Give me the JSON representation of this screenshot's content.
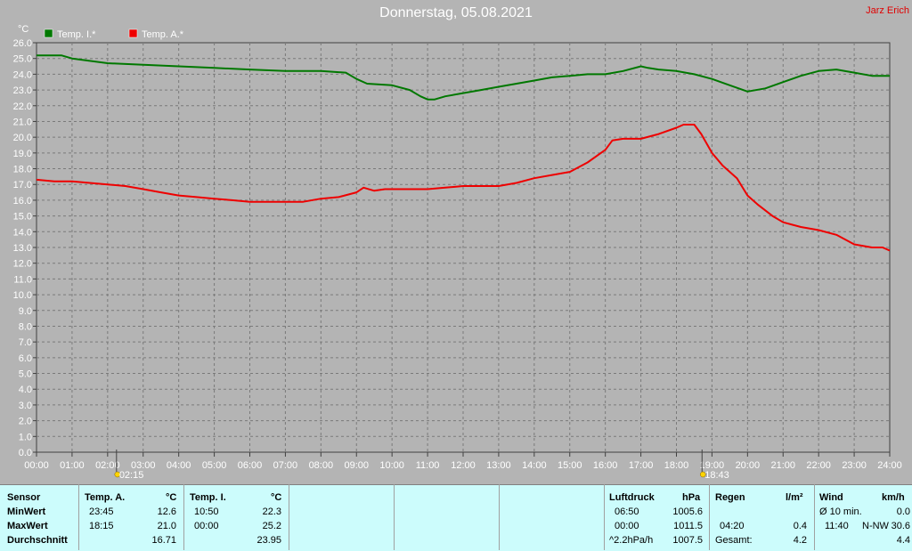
{
  "title": "Donnerstag, 05.08.2021",
  "author": "Jarz Erich",
  "chart_data": {
    "type": "line",
    "title": "Donnerstag, 05.08.2021",
    "yunit": "°C",
    "ylim": [
      0,
      26
    ],
    "ystep": 1,
    "xlim": [
      0,
      24
    ],
    "grid": true,
    "legend_position": "top-left",
    "x_ticks": [
      "00:00",
      "01:00",
      "02:00",
      "03:00",
      "04:00",
      "05:00",
      "06:00",
      "07:00",
      "08:00",
      "09:00",
      "10:00",
      "11:00",
      "12:00",
      "13:00",
      "14:00",
      "15:00",
      "16:00",
      "17:00",
      "18:00",
      "19:00",
      "20:00",
      "21:00",
      "22:00",
      "23:00",
      "24:00"
    ],
    "y_ticks": [
      "0.0",
      "1.0",
      "2.0",
      "3.0",
      "4.0",
      "5.0",
      "6.0",
      "7.0",
      "8.0",
      "9.0",
      "10.0",
      "11.0",
      "12.0",
      "13.0",
      "14.0",
      "15.0",
      "16.0",
      "17.0",
      "18.0",
      "19.0",
      "20.0",
      "21.0",
      "22.0",
      "23.0",
      "24.0",
      "25.0",
      "26.0"
    ],
    "sunrise": {
      "x": 2.25,
      "label": "02:15"
    },
    "sunset": {
      "x": 18.72,
      "label": "18:43"
    },
    "series": [
      {
        "name": "Temp. I.*",
        "color": "#007800",
        "x": [
          0,
          0.7,
          1,
          2,
          3,
          4,
          5,
          6,
          7,
          8,
          8.7,
          9,
          9.3,
          10,
          10.5,
          10.8,
          11,
          11.2,
          11.5,
          12,
          12.5,
          13,
          13.5,
          14,
          14.5,
          15,
          15.5,
          16,
          16.5,
          17,
          17.2,
          17.5,
          18,
          18.5,
          19,
          19.5,
          20,
          20.5,
          21,
          21.5,
          22,
          22.5,
          23,
          23.5,
          24
        ],
        "y": [
          25.2,
          25.2,
          25.0,
          24.7,
          24.6,
          24.5,
          24.4,
          24.3,
          24.2,
          24.2,
          24.1,
          23.7,
          23.4,
          23.3,
          23.0,
          22.6,
          22.4,
          22.4,
          22.6,
          22.8,
          23.0,
          23.2,
          23.4,
          23.6,
          23.8,
          23.9,
          24.0,
          24.0,
          24.2,
          24.5,
          24.4,
          24.3,
          24.2,
          24.0,
          23.7,
          23.3,
          22.9,
          23.1,
          23.5,
          23.9,
          24.2,
          24.3,
          24.1,
          23.9,
          23.9
        ]
      },
      {
        "name": "Temp. A.*",
        "color": "#ee0000",
        "x": [
          0,
          0.5,
          1,
          1.5,
          2,
          2.5,
          3,
          3.5,
          4,
          4.5,
          5,
          5.5,
          6,
          6.5,
          7,
          7.5,
          8,
          8.5,
          9,
          9.2,
          9.5,
          9.8,
          10,
          10.5,
          11,
          11.5,
          12,
          12.5,
          13,
          13.5,
          14,
          14.5,
          15,
          15.5,
          16,
          16.2,
          16.5,
          17,
          17.5,
          18,
          18.2,
          18.5,
          18.7,
          19,
          19.3,
          19.7,
          20,
          20.3,
          20.7,
          21,
          21.5,
          22,
          22.5,
          23,
          23.5,
          23.8,
          24
        ],
        "y": [
          17.3,
          17.2,
          17.2,
          17.1,
          17.0,
          16.9,
          16.7,
          16.5,
          16.3,
          16.2,
          16.1,
          16.0,
          15.9,
          15.9,
          15.9,
          15.9,
          16.1,
          16.2,
          16.5,
          16.8,
          16.6,
          16.7,
          16.7,
          16.7,
          16.7,
          16.8,
          16.9,
          16.9,
          16.9,
          17.1,
          17.4,
          17.6,
          17.8,
          18.4,
          19.2,
          19.8,
          19.9,
          19.9,
          20.2,
          20.6,
          20.8,
          20.8,
          20.2,
          19.0,
          18.2,
          17.4,
          16.3,
          15.7,
          15.0,
          14.6,
          14.3,
          14.1,
          13.8,
          13.2,
          13.0,
          13.0,
          12.8
        ]
      }
    ]
  },
  "stats": {
    "headers": {
      "sensor": "Sensor",
      "temp_a": "Temp. A.",
      "temp_a_unit": "°C",
      "temp_i": "Temp. I.",
      "temp_i_unit": "°C",
      "pressure": "Luftdruck",
      "pressure_unit": "hPa",
      "rain": "Regen",
      "rain_unit": "l/m²",
      "wind": "Wind",
      "wind_unit": "km/h"
    },
    "rows": {
      "min": "MinWert",
      "max": "MaxWert",
      "avg": "Durchschnitt"
    },
    "temp_a": {
      "min_time": "23:45",
      "min": "12.6",
      "max_time": "18:15",
      "max": "21.0",
      "avg": "16.71"
    },
    "temp_i": {
      "min_time": "10:50",
      "min": "22.3",
      "max_time": "00:00",
      "max": "25.2",
      "avg": "23.95"
    },
    "pressure": {
      "r1_time": "06:50",
      "r1": "1005.6",
      "r2_time": "00:00",
      "r2": "1011.5",
      "r3_label": "^2.2hPa/h",
      "r3": "1007.5"
    },
    "rain": {
      "r2_time": "04:20",
      "r2": "0.4",
      "total_label": "Gesamt:",
      "total": "4.2"
    },
    "wind": {
      "r1_label": "Ø 10 min.",
      "r1": "0.0",
      "r2_time": "11:40",
      "r2_dir": "N-NW",
      "r2": "30.6",
      "r3": "4.4"
    }
  }
}
